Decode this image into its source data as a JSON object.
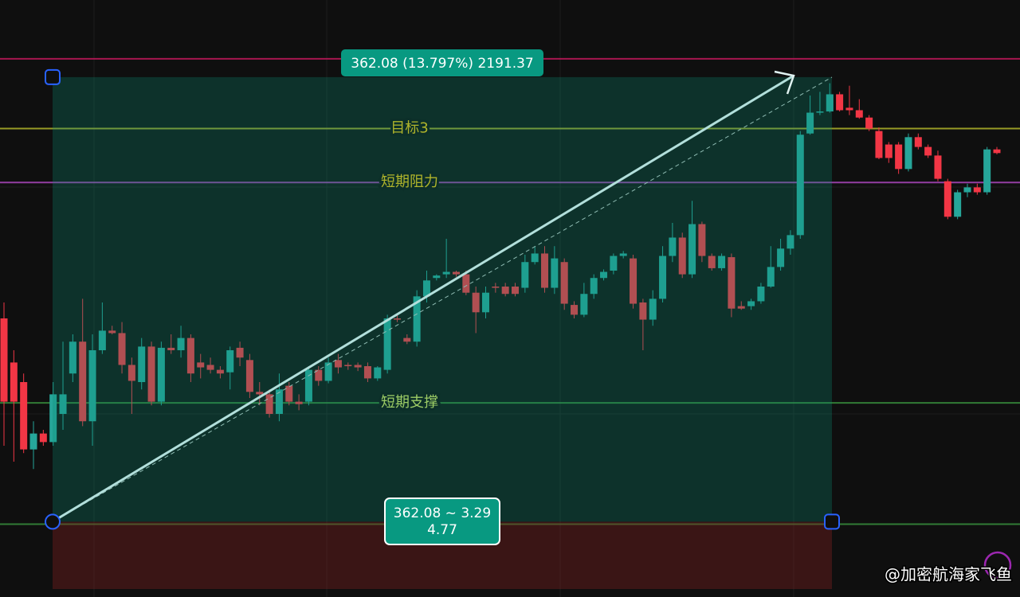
{
  "chart_data": {
    "type": "candlestick",
    "ylim": [
      2561.5,
      3049
    ],
    "up_color": "#26a69a",
    "down_color": "#f23645",
    "candles": [
      [
        2789,
        2802,
        2685,
        2721
      ],
      [
        2753,
        2763,
        2672,
        2721
      ],
      [
        2737,
        2744,
        2679,
        2682
      ],
      [
        2682,
        2705,
        2666,
        2695
      ],
      [
        2695,
        2698,
        2685,
        2688
      ],
      [
        2688,
        2737,
        2685,
        2727
      ],
      [
        2711,
        2770,
        2698,
        2727
      ],
      [
        2744,
        2776,
        2737,
        2770
      ],
      [
        2770,
        2805,
        2701,
        2705
      ],
      [
        2705,
        2776,
        2685,
        2763
      ],
      [
        2763,
        2802,
        2760,
        2779
      ],
      [
        2779,
        2783,
        2776,
        2777
      ],
      [
        2777,
        2786,
        2744,
        2751
      ],
      [
        2751,
        2757,
        2711,
        2738
      ],
      [
        2737,
        2773,
        2731,
        2766
      ],
      [
        2766,
        2770,
        2718,
        2721
      ],
      [
        2721,
        2770,
        2718,
        2765
      ],
      [
        2765,
        2776,
        2760,
        2763
      ],
      [
        2763,
        2783,
        2757,
        2773
      ],
      [
        2773,
        2776,
        2737,
        2744
      ],
      [
        2753,
        2760,
        2740,
        2749
      ],
      [
        2751,
        2757,
        2744,
        2747
      ],
      [
        2747,
        2750,
        2740,
        2744
      ],
      [
        2745,
        2766,
        2731,
        2763
      ],
      [
        2765,
        2770,
        2750,
        2757
      ],
      [
        2755,
        2760,
        2724,
        2729
      ],
      [
        2729,
        2737,
        2718,
        2727
      ],
      [
        2727,
        2731,
        2708,
        2711
      ],
      [
        2711,
        2744,
        2705,
        2731
      ],
      [
        2734,
        2737,
        2718,
        2721
      ],
      [
        2721,
        2727,
        2714,
        2719
      ],
      [
        2721,
        2750,
        2718,
        2747
      ],
      [
        2747,
        2750,
        2734,
        2738
      ],
      [
        2738,
        2757,
        2736,
        2753
      ],
      [
        2755,
        2760,
        2744,
        2749
      ],
      [
        2751,
        2753,
        2747,
        2750
      ],
      [
        2751,
        2753,
        2746,
        2749
      ],
      [
        2750,
        2753,
        2737,
        2740
      ],
      [
        2740,
        2750,
        2738,
        2749
      ],
      [
        2747,
        2792,
        2744,
        2789
      ],
      [
        2789,
        2792,
        2786,
        2788
      ],
      [
        2773,
        2776,
        2768,
        2770
      ],
      [
        2770,
        2812,
        2766,
        2807
      ],
      [
        2807,
        2828,
        2802,
        2820
      ],
      [
        2822,
        2825,
        2820,
        2824
      ],
      [
        2825,
        2854,
        2822,
        2827
      ],
      [
        2827,
        2828,
        2823,
        2825
      ],
      [
        2825,
        2828,
        2808,
        2810
      ],
      [
        2810,
        2815,
        2777,
        2794
      ],
      [
        2794,
        2815,
        2789,
        2810
      ],
      [
        2815,
        2818,
        2810,
        2814
      ],
      [
        2815,
        2818,
        2807,
        2809
      ],
      [
        2815,
        2818,
        2807,
        2809
      ],
      [
        2814,
        2841,
        2810,
        2835
      ],
      [
        2835,
        2848,
        2833,
        2842
      ],
      [
        2842,
        2848,
        2810,
        2814
      ],
      [
        2814,
        2848,
        2809,
        2838
      ],
      [
        2835,
        2838,
        2796,
        2801
      ],
      [
        2800,
        2803,
        2789,
        2792
      ],
      [
        2792,
        2818,
        2790,
        2809
      ],
      [
        2809,
        2825,
        2805,
        2822
      ],
      [
        2822,
        2829,
        2820,
        2827
      ],
      [
        2828,
        2842,
        2825,
        2840
      ],
      [
        2840,
        2844,
        2838,
        2842
      ],
      [
        2838,
        2841,
        2797,
        2801
      ],
      [
        2802,
        2805,
        2763,
        2788
      ],
      [
        2788,
        2812,
        2783,
        2805
      ],
      [
        2805,
        2848,
        2802,
        2840
      ],
      [
        2840,
        2867,
        2835,
        2855
      ],
      [
        2855,
        2859,
        2822,
        2825
      ],
      [
        2825,
        2885,
        2822,
        2866
      ],
      [
        2866,
        2868,
        2835,
        2840
      ],
      [
        2840,
        2842,
        2828,
        2830
      ],
      [
        2830,
        2842,
        2828,
        2840
      ],
      [
        2839,
        2842,
        2790,
        2797
      ],
      [
        2799,
        2803,
        2796,
        2797
      ],
      [
        2799,
        2805,
        2796,
        2803
      ],
      [
        2803,
        2818,
        2801,
        2815
      ],
      [
        2815,
        2848,
        2814,
        2831
      ],
      [
        2831,
        2854,
        2828,
        2846
      ],
      [
        2846,
        2861,
        2841,
        2857
      ],
      [
        2857,
        2942,
        2854,
        2939
      ],
      [
        2940,
        2971,
        2939,
        2957
      ],
      [
        2957,
        2974,
        2955,
        2958
      ],
      [
        2958,
        2981,
        2957,
        2972
      ],
      [
        2972,
        2974,
        2958,
        2959
      ],
      [
        2961,
        2979,
        2955,
        2959
      ],
      [
        2959,
        2968,
        2952,
        2953
      ],
      [
        2953,
        2955,
        2942,
        2944
      ],
      [
        2942,
        2945,
        2919,
        2920
      ],
      [
        2931,
        2933,
        2916,
        2920
      ],
      [
        2931,
        2933,
        2907,
        2911
      ],
      [
        2911,
        2940,
        2909,
        2937
      ],
      [
        2937,
        2940,
        2927,
        2929
      ],
      [
        2929,
        2931,
        2920,
        2922
      ],
      [
        2922,
        2926,
        2901,
        2903
      ],
      [
        2901,
        2903,
        2870,
        2872
      ],
      [
        2872,
        2894,
        2870,
        2892
      ],
      [
        2892,
        2899,
        2888,
        2896
      ],
      [
        2896,
        2899,
        2890,
        2892
      ],
      [
        2892,
        2929,
        2890,
        2927
      ],
      [
        2927,
        2929,
        2923,
        2924
      ]
    ],
    "hlines": [
      {
        "value": 3001,
        "color": "#c2185b"
      },
      {
        "value": 2944,
        "label": "目标3",
        "color": "#afb42b"
      },
      {
        "value": 2900,
        "label": "短期阻力",
        "color": "#ab47bc"
      },
      {
        "value": 2720,
        "label": "短期支撑",
        "color": "#388e3c"
      },
      {
        "value": 2621,
        "color": "#388e3c"
      }
    ],
    "measure": {
      "from": 2623,
      "to": 2986,
      "top_label": "362.08 (13.797%) 2191.37",
      "bottom_label": [
        "362.08 ~ 3.29",
        "4.77"
      ]
    },
    "watermark": "@加密航海家飞鱼"
  }
}
